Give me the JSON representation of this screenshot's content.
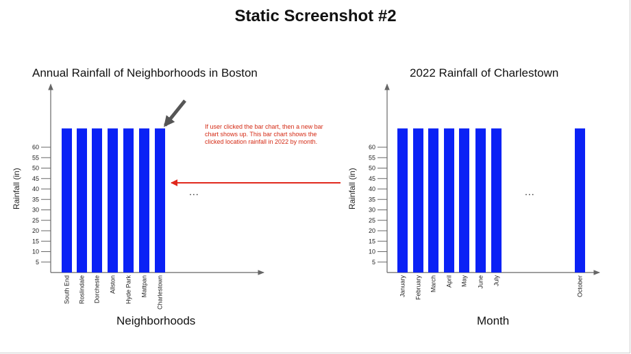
{
  "page": {
    "title": "Static Screenshot #2"
  },
  "annotation": {
    "text": "If user clicked the bar chart, then a new bar chart shows up. This bar chart shows the clicked location rainfall in 2022 by month.",
    "arrow_color": "#e0271b"
  },
  "colors": {
    "bar": "#0a21f5",
    "axis": "#666666",
    "pointer_arrow": "#555555"
  },
  "charts": {
    "left": {
      "ellipsis": "..."
    },
    "right": {
      "ellipsis": "..."
    }
  },
  "chart_data": [
    {
      "type": "bar",
      "title": "Annual Rainfall of Neighborhoods in Boston",
      "xlabel": "Neighborhoods",
      "ylabel": "Rainfall (in)",
      "categories": [
        "South End",
        "Roslindale",
        "Dorcheste",
        "Allston",
        "Hyde Park",
        "Mattpan",
        "Charlestown"
      ],
      "values": [
        69,
        69,
        69,
        69,
        69,
        69,
        69
      ],
      "yticks": [
        5,
        10,
        15,
        20,
        25,
        30,
        35,
        40,
        45,
        50,
        55,
        60
      ],
      "ylim": [
        0,
        75
      ],
      "grid": false
    },
    {
      "type": "bar",
      "title": "2022 Rainfall of Charlestown",
      "xlabel": "Month",
      "ylabel": "Rainfall (in)",
      "categories": [
        "January",
        "February",
        "March",
        "April",
        "May",
        "June",
        "July",
        "October"
      ],
      "values": [
        69,
        69,
        69,
        69,
        69,
        69,
        69,
        69
      ],
      "yticks": [
        5,
        10,
        15,
        20,
        25,
        30,
        35,
        40,
        45,
        50,
        55,
        60
      ],
      "ylim": [
        0,
        75
      ],
      "grid": false
    }
  ]
}
